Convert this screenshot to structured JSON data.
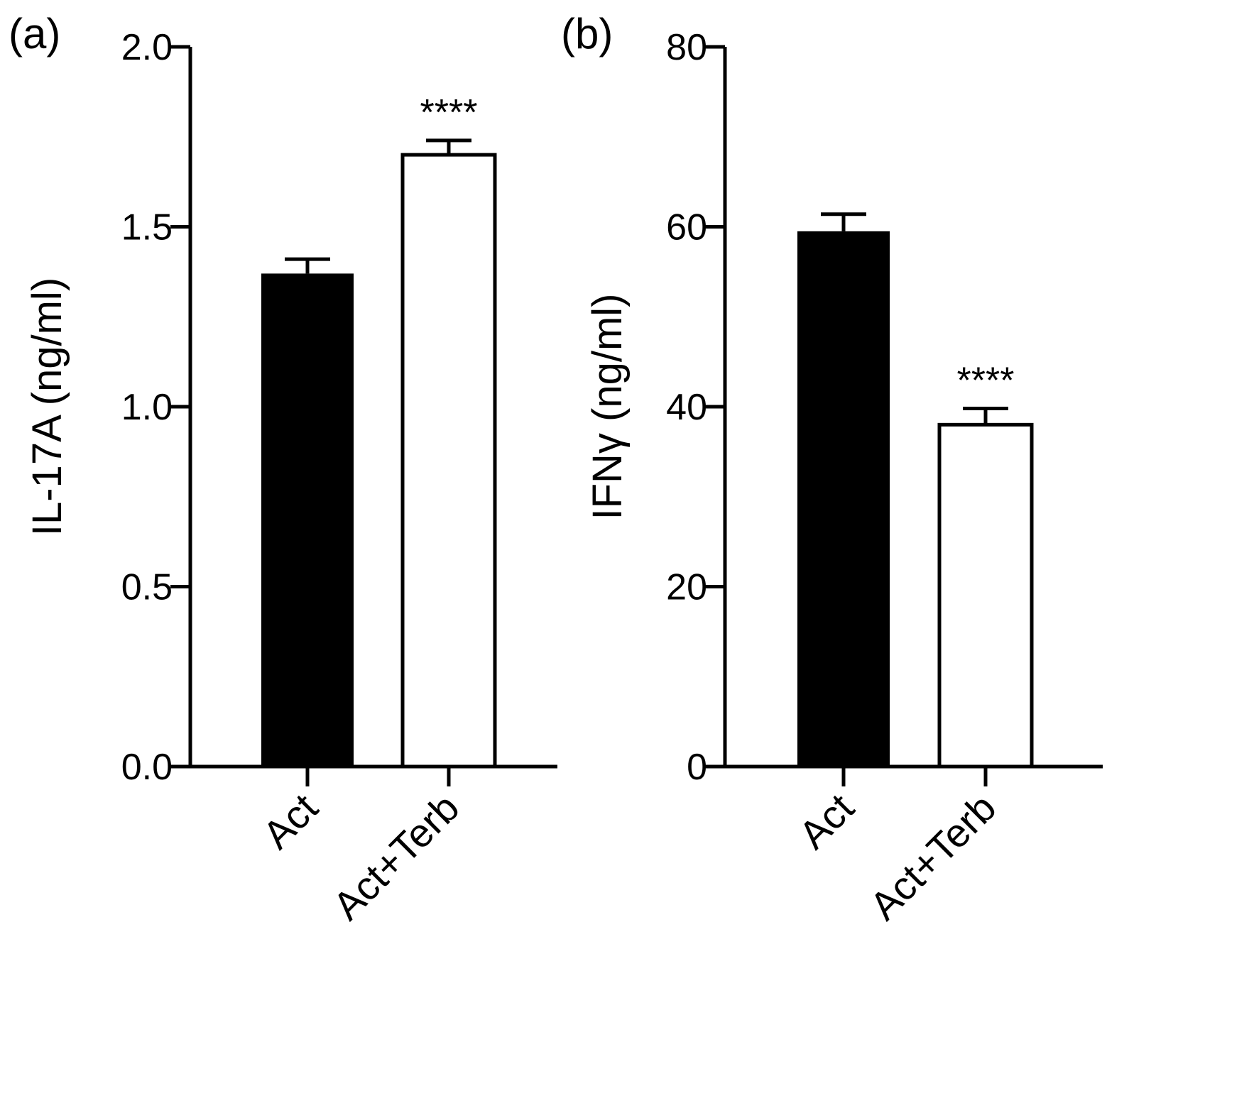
{
  "chart_data": [
    {
      "type": "bar",
      "panel_label": "(a)",
      "categories": [
        "Act",
        "Act+Terb"
      ],
      "values": [
        1.37,
        1.7
      ],
      "errors": [
        0.04,
        0.04
      ],
      "bar_fills": [
        "#000000",
        "#ffffff"
      ],
      "significance": [
        "",
        "****"
      ],
      "ylabel": "IL-17A (ng/ml)",
      "xlabel": "",
      "ylim": [
        0,
        2.0
      ],
      "yticks": [
        0.0,
        0.5,
        1.0,
        1.5,
        2.0
      ],
      "ytick_labels": [
        "0.0",
        "0.5",
        "1.0",
        "1.5",
        "2.0"
      ]
    },
    {
      "type": "bar",
      "panel_label": "(b)",
      "categories": [
        "Act",
        "Act+Terb"
      ],
      "values": [
        59.5,
        38.0
      ],
      "errors": [
        1.9,
        1.8
      ],
      "bar_fills": [
        "#000000",
        "#ffffff"
      ],
      "significance": [
        "",
        "****"
      ],
      "ylabel": "IFNγ (ng/ml)",
      "xlabel": "",
      "ylim": [
        0,
        80
      ],
      "yticks": [
        0,
        20,
        40,
        60,
        80
      ],
      "ytick_labels": [
        "0",
        "20",
        "40",
        "60",
        "80"
      ]
    }
  ]
}
